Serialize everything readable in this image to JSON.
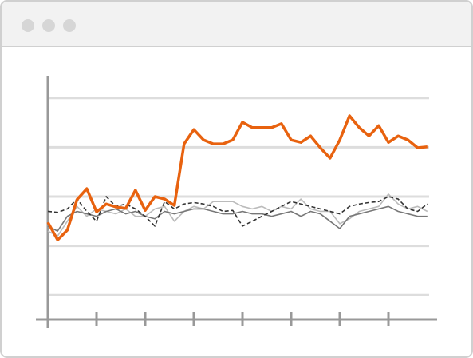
{
  "chart_data": {
    "type": "line",
    "x": [
      0,
      0.2,
      0.4,
      0.6,
      0.8,
      1,
      1.2,
      1.4,
      1.6,
      1.8,
      2,
      2.2,
      2.4,
      2.6,
      2.8,
      3,
      3.2,
      3.4,
      3.6,
      3.8,
      4,
      4.2,
      4.4,
      4.6,
      4.8,
      5,
      5.2,
      5.4,
      5.6,
      5.8,
      6,
      6.2,
      6.4,
      6.6,
      6.8,
      7,
      7.2,
      7.4,
      7.6,
      7.8
    ],
    "series": [
      {
        "color": "#e8620f",
        "values": [
          2.48,
          2.12,
          2.32,
          2.94,
          3.16,
          2.69,
          2.85,
          2.79,
          2.76,
          3.13,
          2.72,
          3.0,
          2.95,
          2.82,
          4.07,
          4.36,
          4.15,
          4.07,
          4.07,
          4.15,
          4.51,
          4.4,
          4.4,
          4.4,
          4.48,
          4.15,
          4.1,
          4.23,
          3.99,
          3.78,
          4.15,
          4.64,
          4.4,
          4.23,
          4.44,
          4.1,
          4.23,
          4.15,
          3.99,
          4.01
        ]
      },
      {
        "color": "#333333",
        "dashed": true,
        "values": [
          2.7,
          2.68,
          2.75,
          2.95,
          2.7,
          2.5,
          3.0,
          2.8,
          2.85,
          2.75,
          2.6,
          2.4,
          2.9,
          2.75,
          2.85,
          2.88,
          2.85,
          2.8,
          2.7,
          2.72,
          2.4,
          2.5,
          2.6,
          2.7,
          2.8,
          2.9,
          2.85,
          2.8,
          2.75,
          2.7,
          2.65,
          2.8,
          2.85,
          2.88,
          2.9,
          3.0,
          2.95,
          2.75,
          2.7,
          2.85
        ]
      },
      {
        "color": "#777777",
        "values": [
          2.4,
          2.3,
          2.6,
          2.7,
          2.65,
          2.6,
          2.7,
          2.75,
          2.65,
          2.7,
          2.6,
          2.55,
          2.7,
          2.65,
          2.7,
          2.75,
          2.75,
          2.7,
          2.65,
          2.65,
          2.7,
          2.65,
          2.65,
          2.6,
          2.65,
          2.7,
          2.6,
          2.7,
          2.65,
          2.5,
          2.35,
          2.6,
          2.65,
          2.7,
          2.75,
          2.8,
          2.7,
          2.65,
          2.6,
          2.6
        ]
      },
      {
        "color": "#bbbbbb",
        "values": [
          2.3,
          2.2,
          2.5,
          2.8,
          2.6,
          2.75,
          2.7,
          2.65,
          2.75,
          2.6,
          2.6,
          2.75,
          2.8,
          2.5,
          2.7,
          2.8,
          2.75,
          2.9,
          2.9,
          2.9,
          2.8,
          2.75,
          2.8,
          2.7,
          2.8,
          2.75,
          2.95,
          2.75,
          2.7,
          2.7,
          2.45,
          2.55,
          2.7,
          2.75,
          2.8,
          3.05,
          2.85,
          2.75,
          2.8,
          2.7
        ]
      }
    ],
    "xlim": [
      0,
      8
    ],
    "xticks": [
      0,
      1,
      2,
      3,
      4,
      5,
      6,
      7
    ],
    "ylim": [
      0.5,
      5.5
    ],
    "yticks": [
      1,
      2,
      3,
      4,
      5
    ],
    "grid": true
  }
}
